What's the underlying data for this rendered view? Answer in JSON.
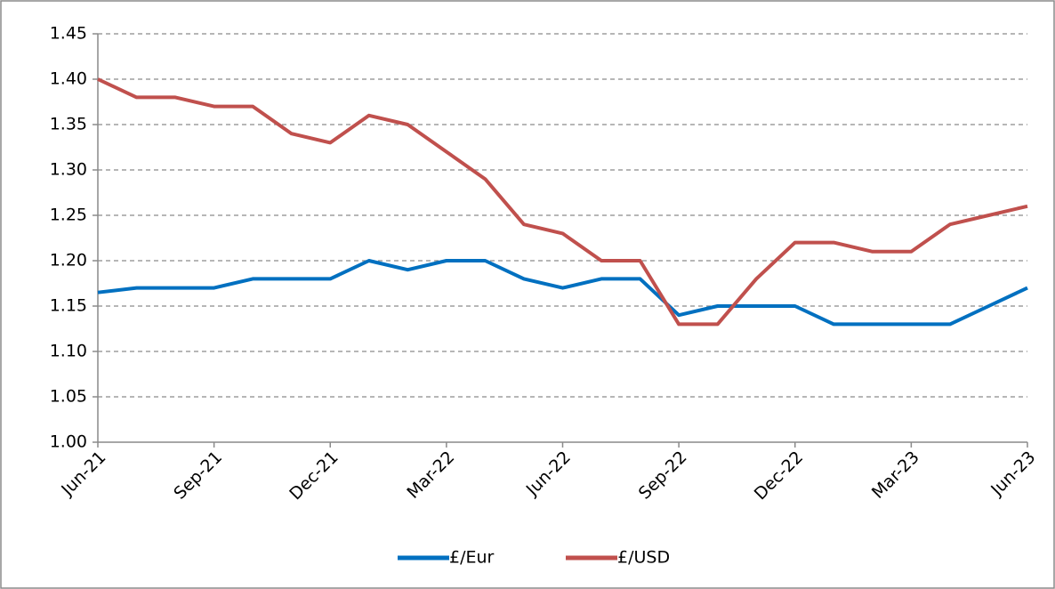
{
  "chart_data": {
    "type": "line",
    "categories": [
      "Jun-21",
      null,
      null,
      "Sep-21",
      null,
      null,
      "Dec-21",
      null,
      null,
      "Mar-22",
      null,
      null,
      "Jun-22",
      null,
      null,
      "Sep-22",
      null,
      null,
      "Dec-22",
      null,
      null,
      "Mar-23",
      null,
      null,
      "Jun-23"
    ],
    "series": [
      {
        "name": "£/Eur",
        "color": "#0070c0",
        "values": [
          1.165,
          1.17,
          1.17,
          1.17,
          1.18,
          1.18,
          1.18,
          1.2,
          1.19,
          1.2,
          1.2,
          1.18,
          1.17,
          1.18,
          1.18,
          1.14,
          1.15,
          1.15,
          1.15,
          1.13,
          1.13,
          1.13,
          1.13,
          1.15,
          1.17
        ]
      },
      {
        "name": "£/USD",
        "color": "#c0504d",
        "values": [
          1.4,
          1.38,
          1.38,
          1.37,
          1.37,
          1.34,
          1.33,
          1.36,
          1.35,
          1.32,
          1.29,
          1.24,
          1.23,
          1.2,
          1.2,
          1.13,
          1.13,
          1.18,
          1.22,
          1.22,
          1.21,
          1.21,
          1.24,
          1.25,
          1.26
        ]
      }
    ],
    "ylim": [
      1.0,
      1.45
    ],
    "yticks": [
      {
        "value": 1.0,
        "label": "1.00"
      },
      1.05,
      {
        "value": 1.1,
        "label": "1.10"
      },
      1.15,
      {
        "value": 1.2,
        "label": "1.20"
      },
      1.25,
      {
        "value": 1.3,
        "label": "1.30"
      },
      1.35,
      {
        "value": 1.4,
        "label": "1.40"
      },
      1.45
    ],
    "grid": true,
    "legend": "bottom"
  }
}
